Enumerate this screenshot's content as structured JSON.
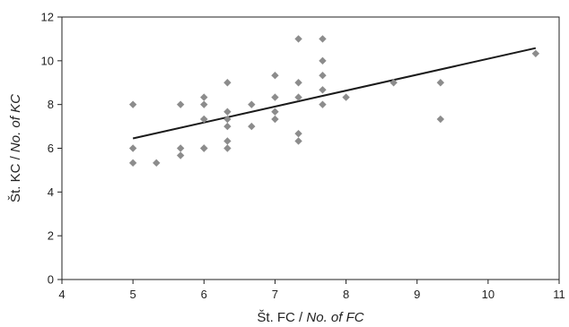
{
  "chart_data": {
    "type": "scatter",
    "title": "",
    "xlabel": {
      "plain": "Št. FC / ",
      "italic": "No. of FC"
    },
    "ylabel": {
      "plain": "Št. KC / ",
      "italic": "No. of KC"
    },
    "xlim": [
      4,
      11
    ],
    "ylim": [
      0,
      12
    ],
    "x_ticks": [
      4,
      5,
      6,
      7,
      8,
      9,
      10,
      11
    ],
    "y_ticks": [
      0,
      2,
      4,
      6,
      8,
      10,
      12
    ],
    "grid": false,
    "marker": "diamond",
    "marker_color": "#8c8c8c",
    "line_color": "#1a1a1a",
    "points": [
      {
        "x": 5,
        "y": 8
      },
      {
        "x": 5,
        "y": 6
      },
      {
        "x": 5,
        "y": 5.33
      },
      {
        "x": 5.33,
        "y": 5.33
      },
      {
        "x": 5.67,
        "y": 8
      },
      {
        "x": 5.67,
        "y": 6
      },
      {
        "x": 5.67,
        "y": 5.67
      },
      {
        "x": 6,
        "y": 8.33
      },
      {
        "x": 6,
        "y": 8
      },
      {
        "x": 6,
        "y": 7.33
      },
      {
        "x": 6,
        "y": 7.33
      },
      {
        "x": 6,
        "y": 6
      },
      {
        "x": 6,
        "y": 6
      },
      {
        "x": 6.33,
        "y": 9
      },
      {
        "x": 6.33,
        "y": 7.67
      },
      {
        "x": 6.33,
        "y": 7.33
      },
      {
        "x": 6.33,
        "y": 7
      },
      {
        "x": 6.33,
        "y": 6.33
      },
      {
        "x": 6.33,
        "y": 6
      },
      {
        "x": 6.67,
        "y": 8
      },
      {
        "x": 6.67,
        "y": 7
      },
      {
        "x": 7,
        "y": 9.33
      },
      {
        "x": 7,
        "y": 8.33
      },
      {
        "x": 7,
        "y": 7.67
      },
      {
        "x": 7,
        "y": 7.33
      },
      {
        "x": 7.33,
        "y": 11
      },
      {
        "x": 7.33,
        "y": 9
      },
      {
        "x": 7.33,
        "y": 8.33
      },
      {
        "x": 7.33,
        "y": 6.67
      },
      {
        "x": 7.33,
        "y": 6.33
      },
      {
        "x": 7.67,
        "y": 11
      },
      {
        "x": 7.67,
        "y": 10
      },
      {
        "x": 7.67,
        "y": 9.33
      },
      {
        "x": 7.67,
        "y": 8.67
      },
      {
        "x": 7.67,
        "y": 8
      },
      {
        "x": 8,
        "y": 8.33
      },
      {
        "x": 8.67,
        "y": 9
      },
      {
        "x": 9.33,
        "y": 9
      },
      {
        "x": 9.33,
        "y": 7.33
      },
      {
        "x": 10.67,
        "y": 10.33
      }
    ],
    "trendline": {
      "x": [
        5,
        10.67
      ],
      "y": [
        6.45,
        10.58
      ]
    }
  }
}
